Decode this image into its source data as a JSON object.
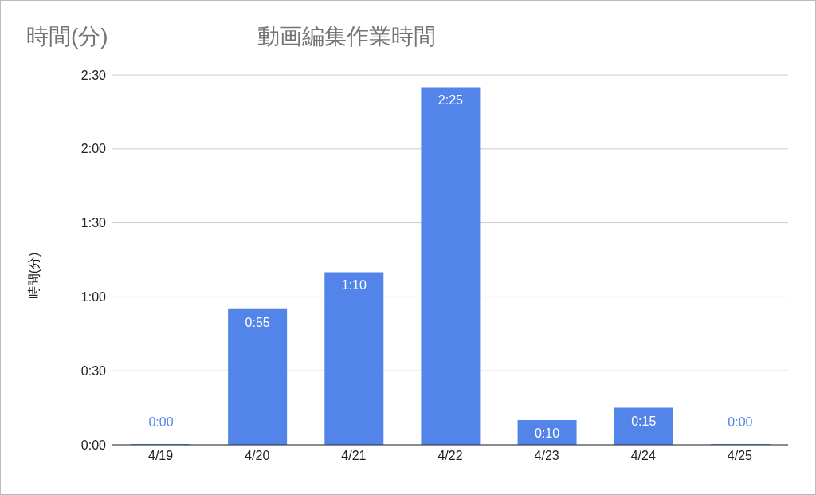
{
  "chart_data": {
    "type": "bar",
    "title": "動画編集作業時間",
    "annotations": [
      "時間(分)"
    ],
    "ylabel": "時間(分)",
    "categories": [
      "4/19",
      "4/20",
      "4/21",
      "4/22",
      "4/23",
      "4/24",
      "4/25"
    ],
    "values": [
      0,
      55,
      70,
      145,
      10,
      15,
      0
    ],
    "value_labels": [
      "0:00",
      "0:55",
      "1:10",
      "2:25",
      "0:10",
      "0:15",
      "0:00"
    ],
    "color": "#5384ea",
    "ylim": [
      0,
      150
    ],
    "yticks": [
      {
        "value": 0,
        "label": "0:00"
      },
      {
        "value": 30,
        "label": "0:30"
      },
      {
        "value": 60,
        "label": "1:00"
      },
      {
        "value": 90,
        "label": "1:30"
      },
      {
        "value": 120,
        "label": "2:00"
      },
      {
        "value": 150,
        "label": "2:30"
      }
    ],
    "grid": "y",
    "legend": false
  }
}
